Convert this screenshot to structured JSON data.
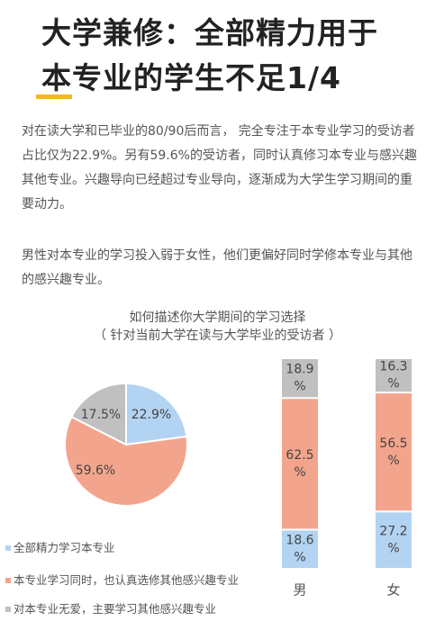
{
  "title": {
    "line1": "大学兼修：全部精力用于",
    "line2": "本专业的学生不足1/4"
  },
  "paragraphs": [
    "对在读大学和已毕业的80/90后而言， 完全专注于本专业学习的受访者占比仅为22.9%。另有59.6%的受访者，同时认真修习本专业与感兴趣其他专业。兴趣导向已经超过专业导向，逐渐成为大学生学习期间的重要动力。",
    "男性对本专业的学习投入弱于女性，他们更偏好同时学修本专业与其他的感兴趣专业。"
  ],
  "chart_title": {
    "line1": "如何描述你大学期间的学习选择",
    "line2": "（ 针对当前大学在读与大学毕业的受访者 ）"
  },
  "colors": {
    "blue": "#b3d3f2",
    "salmon": "#f2a58c",
    "gray": "#c0c0c0",
    "accent": "#f3b81c"
  },
  "chart_data": [
    {
      "type": "pie",
      "labels": [
        "全部精力学习本专业",
        "本专业学习同时，也认真选修其他感兴趣专业",
        "对本专业无爱，主要学习其他感兴趣专业"
      ],
      "values": [
        22.9,
        59.6,
        17.5
      ],
      "value_labels": [
        "22.9%",
        "59.6%",
        "17.5%"
      ],
      "legend": "bottom-left"
    },
    {
      "type": "bar",
      "stacked": true,
      "categories": [
        "男",
        "女"
      ],
      "series": [
        {
          "name": "全部精力学习本专业",
          "values": [
            18.6,
            27.2
          ],
          "labels": [
            "18.6\n%",
            "27.2\n%"
          ]
        },
        {
          "name": "本专业学习同时，也认真选修其他感兴趣专业",
          "values": [
            62.5,
            56.5
          ],
          "labels": [
            "62.5\n%",
            "56.5\n%"
          ]
        },
        {
          "name": "对本专业无爱，主要学习其他感兴趣专业",
          "values": [
            18.9,
            16.3
          ],
          "labels": [
            "18.9\n%",
            "16.3\n%"
          ]
        }
      ],
      "ylim": [
        0,
        100
      ]
    }
  ]
}
